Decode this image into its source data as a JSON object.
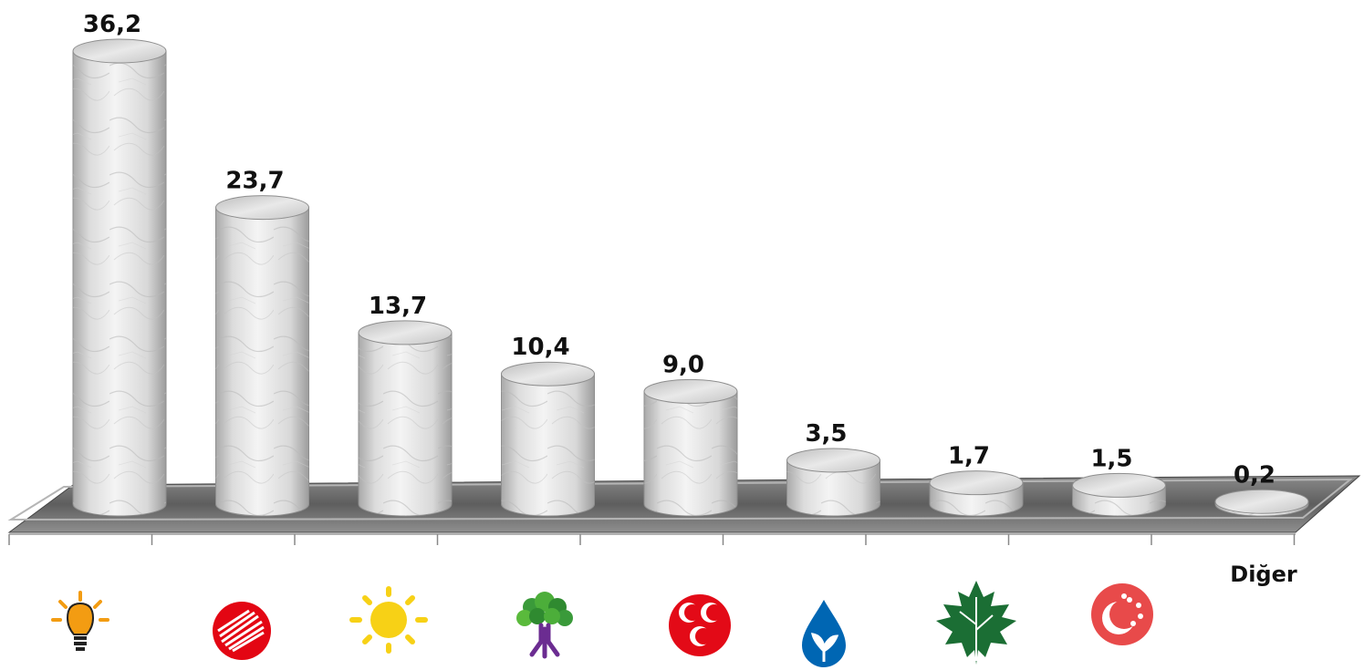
{
  "chart_data": {
    "type": "bar",
    "categories": [
      "AK Parti",
      "CHP",
      "İYİ Parti",
      "HDP",
      "MHP",
      "DEVA",
      "Gelecek",
      "Saadet",
      "Diğer"
    ],
    "category_labels": [
      "",
      "",
      "",
      "",
      "",
      "",
      "",
      "",
      "Diğer"
    ],
    "logos": [
      "akp-lightbulb-logo",
      "chp-six-arrows-logo",
      "iyi-sun-logo",
      "hdp-tree-logo",
      "mhp-crescents-logo",
      "deva-drop-logo",
      "gelecek-leaf-logo",
      "saadet-crescent-stars-logo",
      ""
    ],
    "values": [
      36.2,
      23.7,
      13.7,
      10.4,
      9.0,
      3.5,
      1.7,
      1.5,
      0.2
    ],
    "value_labels": [
      "36,2",
      "23,7",
      "13,7",
      "10,4",
      "9,0",
      "3,5",
      "1,7",
      "1,5",
      "0,2"
    ],
    "style": "3d-cylinder-marble",
    "ylim": [
      0,
      38
    ],
    "grid": false,
    "legend": "none",
    "colors": {
      "bar_face": "#e6e6e6",
      "bar_edge": "#9a9a9a",
      "floor": "#6f6f6f",
      "akp": "#f39c12",
      "chp": "#e30613",
      "iyi": "#f7d116",
      "hdp": "#6b2c91",
      "mhp": "#e30a17",
      "deva": "#0066b3",
      "gelecek": "#1b6e34",
      "saadet": "#e84a4a"
    }
  }
}
